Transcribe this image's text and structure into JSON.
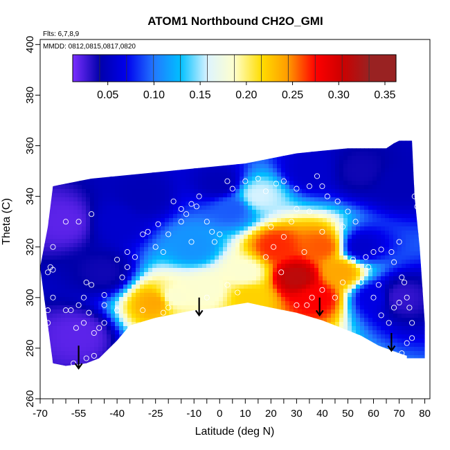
{
  "chart_data": {
    "type": "heatmap",
    "title": "ATOM1 Northbound CH2O_GMI",
    "annotations": {
      "flights": "Flts: 6,7,8,9",
      "dates": "MMDD: 0812,0815,0817,0820"
    },
    "xlabel": "Latitude (deg N)",
    "ylabel": "Theta (C)",
    "xlim": [
      -70,
      82
    ],
    "ylim": [
      260,
      402
    ],
    "x_ticks": [
      -70,
      -55,
      -40,
      -25,
      -10,
      0,
      10,
      20,
      30,
      40,
      50,
      60,
      70,
      80
    ],
    "x_tick_labels": [
      "-70",
      "-55",
      "-40",
      "-25",
      "-10",
      "0",
      "10",
      "20",
      "30",
      "40",
      "50",
      "60",
      "70",
      "80"
    ],
    "x_minor_ticks": [
      -65,
      -60,
      -50,
      -45,
      -35,
      -30,
      -20,
      -15,
      -5,
      5,
      15,
      25,
      35,
      45,
      55,
      65,
      75
    ],
    "y_ticks": [
      260,
      280,
      300,
      320,
      340,
      360,
      380,
      400
    ],
    "y_tick_labels": [
      "260",
      "280",
      "300",
      "320",
      "340",
      "360",
      "380",
      "400"
    ],
    "colorbar": {
      "range": [
        0.012,
        0.362
      ],
      "ticks": [
        0.05,
        0.1,
        0.15,
        0.2,
        0.25,
        0.3,
        0.35
      ],
      "tick_labels": [
        "0.05",
        "0.10",
        "0.15",
        "0.20",
        "0.25",
        "0.30",
        "0.35"
      ],
      "colors": [
        "#7b2fff",
        "#0000aa",
        "#0000ee",
        "#2277ff",
        "#00c0ff",
        "#ddf4ff",
        "#ffffcc",
        "#ffdd00",
        "#ff9900",
        "#ff0000",
        "#cc0000",
        "#992222"
      ]
    },
    "top_boundary": [
      [
        -70,
        312
      ],
      [
        -67,
        328
      ],
      [
        -65,
        344
      ],
      [
        -60,
        345
      ],
      [
        -50,
        347
      ],
      [
        -40,
        348
      ],
      [
        -30,
        349
      ],
      [
        -20,
        350
      ],
      [
        -10,
        351
      ],
      [
        0,
        352
      ],
      [
        10,
        353
      ],
      [
        20,
        355
      ],
      [
        30,
        357
      ],
      [
        40,
        358
      ],
      [
        50,
        359
      ],
      [
        60,
        359
      ],
      [
        65,
        359
      ],
      [
        68,
        361
      ],
      [
        70,
        362
      ],
      [
        75,
        362
      ]
    ],
    "bottom_boundary": [
      [
        -65,
        274
      ],
      [
        -60,
        273
      ],
      [
        -52,
        274
      ],
      [
        -47,
        276
      ],
      [
        -40,
        283
      ],
      [
        -35,
        289
      ],
      [
        -25,
        292
      ],
      [
        -10,
        295
      ],
      [
        0,
        296
      ],
      [
        5,
        297
      ],
      [
        11,
        298
      ],
      [
        20,
        296
      ],
      [
        30,
        294
      ],
      [
        40,
        291
      ],
      [
        45,
        289
      ],
      [
        55,
        285
      ],
      [
        62,
        281
      ],
      [
        70,
        278
      ],
      [
        73,
        277
      ]
    ],
    "right_edge": [
      [
        75,
        362
      ],
      [
        76,
        340
      ],
      [
        78,
        320
      ],
      [
        79,
        305
      ],
      [
        80,
        290
      ],
      [
        80,
        276
      ],
      [
        73,
        276
      ]
    ],
    "field_anchors": [
      {
        "x": -55,
        "y": 285,
        "v": 0.02
      },
      {
        "x": -45,
        "y": 310,
        "v": 0.04
      },
      {
        "x": -40,
        "y": 330,
        "v": 0.06
      },
      {
        "x": -30,
        "y": 340,
        "v": 0.05
      },
      {
        "x": -25,
        "y": 298,
        "v": 0.26
      },
      {
        "x": -18,
        "y": 300,
        "v": 0.2
      },
      {
        "x": -10,
        "y": 320,
        "v": 0.12
      },
      {
        "x": -5,
        "y": 303,
        "v": 0.2
      },
      {
        "x": 5,
        "y": 335,
        "v": 0.1
      },
      {
        "x": 10,
        "y": 310,
        "v": 0.2
      },
      {
        "x": 12,
        "y": 300,
        "v": 0.24
      },
      {
        "x": 15,
        "y": 340,
        "v": 0.17
      },
      {
        "x": 22,
        "y": 320,
        "v": 0.29
      },
      {
        "x": 30,
        "y": 308,
        "v": 0.34
      },
      {
        "x": 40,
        "y": 320,
        "v": 0.28
      },
      {
        "x": 38,
        "y": 300,
        "v": 0.3
      },
      {
        "x": 47,
        "y": 310,
        "v": 0.26
      },
      {
        "x": 55,
        "y": 320,
        "v": 0.06
      },
      {
        "x": 60,
        "y": 300,
        "v": 0.07
      },
      {
        "x": 70,
        "y": 300,
        "v": 0.03
      },
      {
        "x": 70,
        "y": 345,
        "v": 0.05
      },
      {
        "x": 55,
        "y": 350,
        "v": 0.04
      },
      {
        "x": 35,
        "y": 350,
        "v": 0.06
      },
      {
        "x": 0,
        "y": 345,
        "v": 0.05
      },
      {
        "x": -60,
        "y": 330,
        "v": 0.02
      }
    ],
    "observations": [
      [
        -67,
        310
      ],
      [
        -66,
        312
      ],
      [
        -65,
        311
      ],
      [
        -67,
        290
      ],
      [
        -67,
        295
      ],
      [
        -65,
        300
      ],
      [
        -60,
        295
      ],
      [
        -58,
        295
      ],
      [
        -55,
        297
      ],
      [
        -53,
        300
      ],
      [
        -52,
        306
      ],
      [
        -56,
        288
      ],
      [
        -53,
        290
      ],
      [
        -51,
        294
      ],
      [
        -49,
        286
      ],
      [
        -47,
        288
      ],
      [
        -52,
        276
      ],
      [
        -49,
        277
      ],
      [
        -57,
        274
      ],
      [
        -45,
        290
      ],
      [
        -45,
        301
      ],
      [
        -40,
        315
      ],
      [
        -36,
        318
      ],
      [
        -38,
        308
      ],
      [
        -36,
        312
      ],
      [
        -33,
        316
      ],
      [
        -30,
        325
      ],
      [
        -28,
        326
      ],
      [
        -25,
        320
      ],
      [
        -24,
        329
      ],
      [
        -22,
        318
      ],
      [
        -20,
        325
      ],
      [
        -18,
        338
      ],
      [
        -15,
        335
      ],
      [
        -13,
        333
      ],
      [
        -11,
        337
      ],
      [
        -9,
        336
      ],
      [
        -8,
        340
      ],
      [
        -11,
        322
      ],
      [
        -15,
        330
      ],
      [
        -5,
        330
      ],
      [
        -3,
        326
      ],
      [
        -2,
        322
      ],
      [
        0,
        325
      ],
      [
        3,
        346
      ],
      [
        5,
        343
      ],
      [
        10,
        346
      ],
      [
        15,
        347
      ],
      [
        18,
        342
      ],
      [
        22,
        345
      ],
      [
        25,
        346
      ],
      [
        30,
        343
      ],
      [
        35,
        344
      ],
      [
        38,
        348
      ],
      [
        40,
        344
      ],
      [
        42,
        340
      ],
      [
        46,
        338
      ],
      [
        50,
        334
      ],
      [
        53,
        330
      ],
      [
        48,
        328
      ],
      [
        40,
        326
      ],
      [
        35,
        334
      ],
      [
        30,
        335
      ],
      [
        33,
        318
      ],
      [
        28,
        330
      ],
      [
        25,
        324
      ],
      [
        20,
        328
      ],
      [
        18,
        316
      ],
      [
        21,
        320
      ],
      [
        24,
        310
      ],
      [
        30,
        297
      ],
      [
        34,
        297
      ],
      [
        36,
        300
      ],
      [
        40,
        303
      ],
      [
        45,
        300
      ],
      [
        48,
        306
      ],
      [
        52,
        315
      ],
      [
        57,
        316
      ],
      [
        60,
        318
      ],
      [
        63,
        319
      ],
      [
        58,
        312
      ],
      [
        55,
        306
      ],
      [
        60,
        300
      ],
      [
        62,
        305
      ],
      [
        63,
        293
      ],
      [
        66,
        290
      ],
      [
        68,
        296
      ],
      [
        70,
        298
      ],
      [
        71,
        308
      ],
      [
        72,
        306
      ],
      [
        73,
        300
      ],
      [
        74,
        296
      ],
      [
        75,
        290
      ],
      [
        73,
        282
      ],
      [
        75,
        284
      ],
      [
        71,
        278
      ],
      [
        77,
        336
      ],
      [
        79,
        330
      ],
      [
        76,
        340
      ],
      [
        79,
        346
      ],
      [
        70,
        322
      ],
      [
        67,
        318
      ],
      [
        68,
        314
      ],
      [
        7,
        302
      ],
      [
        3,
        305
      ],
      [
        -5,
        300
      ],
      [
        -20,
        296
      ],
      [
        -22,
        294
      ],
      [
        -30,
        295
      ],
      [
        -34,
        288
      ],
      [
        -40,
        295
      ],
      [
        -45,
        297
      ],
      [
        -50,
        305
      ],
      [
        -65,
        320
      ],
      [
        -60,
        330
      ],
      [
        -55,
        330
      ],
      [
        -50,
        333
      ]
    ],
    "arrows": [
      {
        "x": -55,
        "y_top": 281,
        "y_bottom": 272
      },
      {
        "x": -8,
        "y_top": 300,
        "y_bottom": 293
      },
      {
        "x": 39,
        "y_top": 300,
        "y_bottom": 293
      },
      {
        "x": 67,
        "y_top": 286,
        "y_bottom": 279
      }
    ]
  }
}
